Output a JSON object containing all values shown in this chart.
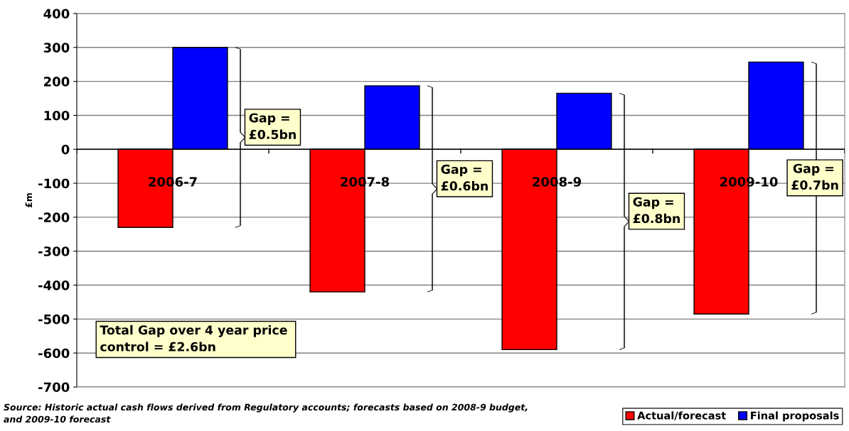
{
  "chart_data": {
    "type": "bar",
    "ylabel": "£m",
    "categories": [
      "2006-7",
      "2007-8",
      "2008-9",
      "2009-10"
    ],
    "series": [
      {
        "name": "Actual/forecast",
        "color": "#ff0000",
        "values": [
          -230,
          -420,
          -590,
          -485
        ]
      },
      {
        "name": "Final proposals",
        "color": "#0000ff",
        "values": [
          300,
          187,
          165,
          257
        ]
      }
    ],
    "ylim": [
      -700,
      400
    ],
    "yticks": [
      -700,
      -600,
      -500,
      -400,
      -300,
      -200,
      -100,
      0,
      100,
      200,
      300,
      400
    ],
    "grid": "y",
    "legend": "bottom right",
    "annotations": [
      "Gap = \n£0.5bn",
      "Gap = \n£0.6bn",
      "Gap = \n£0.8bn",
      "Gap = \n£0.7bn",
      "Total Gap over 4 year price \ncontrol = £2.6bn",
      "Source: Historic actual cash flows derived from Regulatory accounts; forecasts based on 2008-9 budget, \nand 2009-10 forecast"
    ]
  }
}
